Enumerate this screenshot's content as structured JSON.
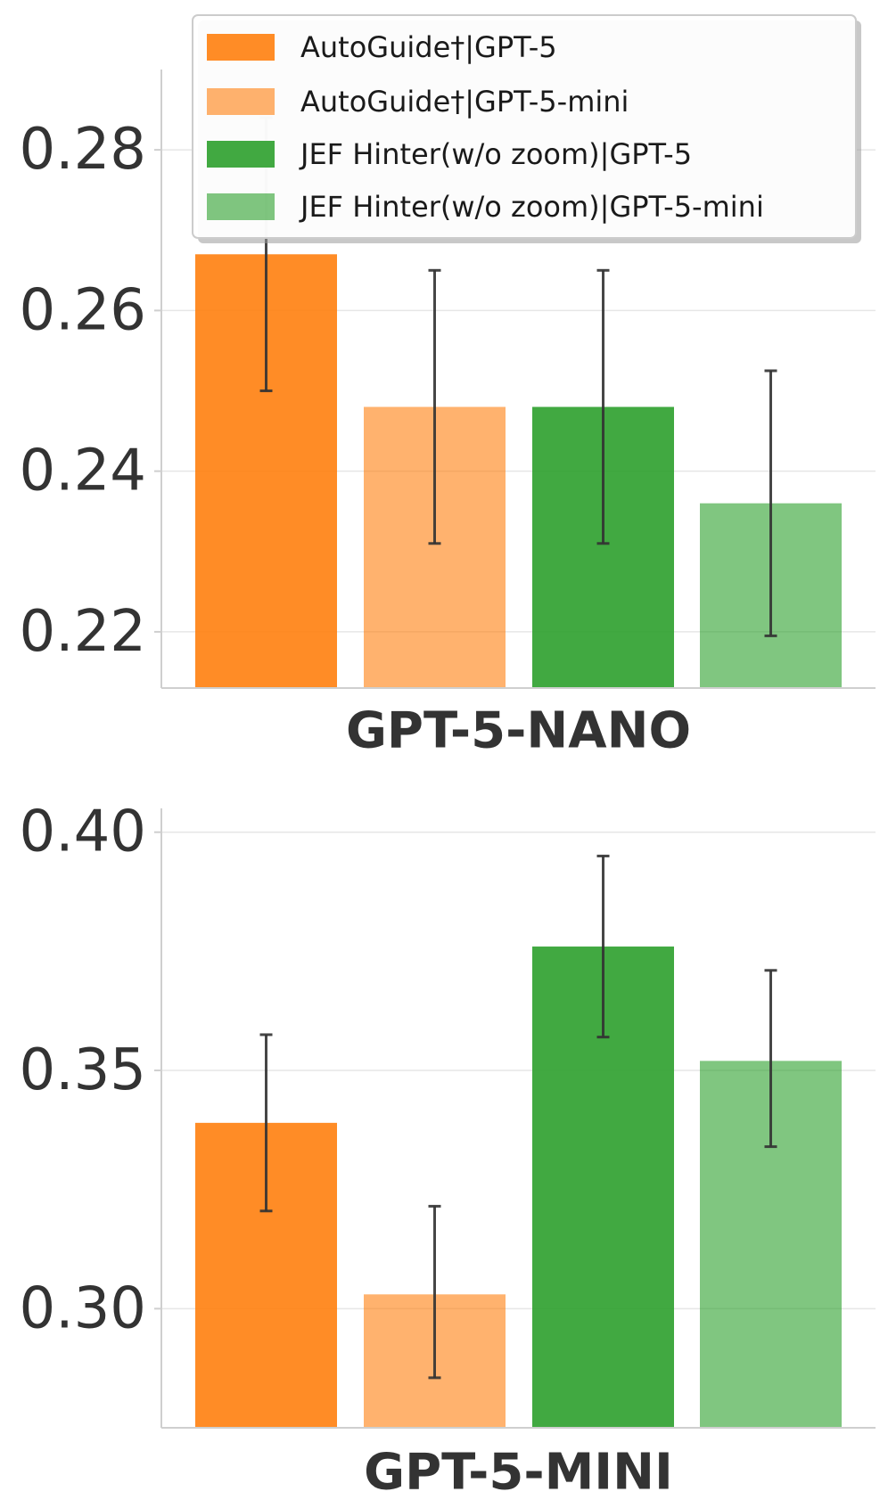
{
  "chart_data": [
    {
      "type": "bar",
      "categories": [
        "GPT-5-NANO"
      ],
      "xlabel": "GPT-5-NANO",
      "ylabel": "",
      "ylim": [
        0.213,
        0.29
      ],
      "yticks": [
        0.22,
        0.24,
        0.26,
        0.28
      ],
      "ytick_labels": [
        "0.22",
        "0.24",
        "0.26",
        "0.28"
      ],
      "grid": true,
      "legend": "top-right",
      "series": [
        {
          "name": "AutoGuide†|GPT-5",
          "values": [
            0.267
          ],
          "error_low": [
            0.25
          ],
          "error_high": [
            0.284
          ],
          "color": "#ff7f0e",
          "opacity": 0.9
        },
        {
          "name": "AutoGuide†|GPT-5-mini",
          "values": [
            0.248
          ],
          "error_low": [
            0.231
          ],
          "error_high": [
            0.265
          ],
          "color": "#ff7f0e",
          "opacity": 0.6
        },
        {
          "name": "JEF Hinter(w/o zoom)|GPT-5",
          "values": [
            0.248
          ],
          "error_low": [
            0.231
          ],
          "error_high": [
            0.265
          ],
          "color": "#2ca02c",
          "opacity": 0.9
        },
        {
          "name": "JEF Hinter(w/o zoom)|GPT-5-mini",
          "values": [
            0.236
          ],
          "error_low": [
            0.2195
          ],
          "error_high": [
            0.2525
          ],
          "color": "#2ca02c",
          "opacity": 0.6
        }
      ]
    },
    {
      "type": "bar",
      "categories": [
        "GPT-5-MINI"
      ],
      "xlabel": "GPT-5-MINI",
      "ylabel": "",
      "ylim": [
        0.275,
        0.405
      ],
      "yticks": [
        0.3,
        0.35,
        0.4
      ],
      "ytick_labels": [
        "0.30",
        "0.35",
        "0.40"
      ],
      "grid": true,
      "legend": "none",
      "series": [
        {
          "name": "AutoGuide†|GPT-5",
          "values": [
            0.339
          ],
          "error_low": [
            0.3205
          ],
          "error_high": [
            0.3575
          ],
          "color": "#ff7f0e",
          "opacity": 0.9
        },
        {
          "name": "AutoGuide†|GPT-5-mini",
          "values": [
            0.303
          ],
          "error_low": [
            0.2855
          ],
          "error_high": [
            0.3215
          ],
          "color": "#ff7f0e",
          "opacity": 0.6
        },
        {
          "name": "JEF Hinter(w/o zoom)|GPT-5",
          "values": [
            0.376
          ],
          "error_low": [
            0.357
          ],
          "error_high": [
            0.395
          ],
          "color": "#2ca02c",
          "opacity": 0.9
        },
        {
          "name": "JEF Hinter(w/o zoom)|GPT-5-mini",
          "values": [
            0.352
          ],
          "error_low": [
            0.334
          ],
          "error_high": [
            0.371
          ],
          "color": "#2ca02c",
          "opacity": 0.6
        }
      ]
    }
  ]
}
